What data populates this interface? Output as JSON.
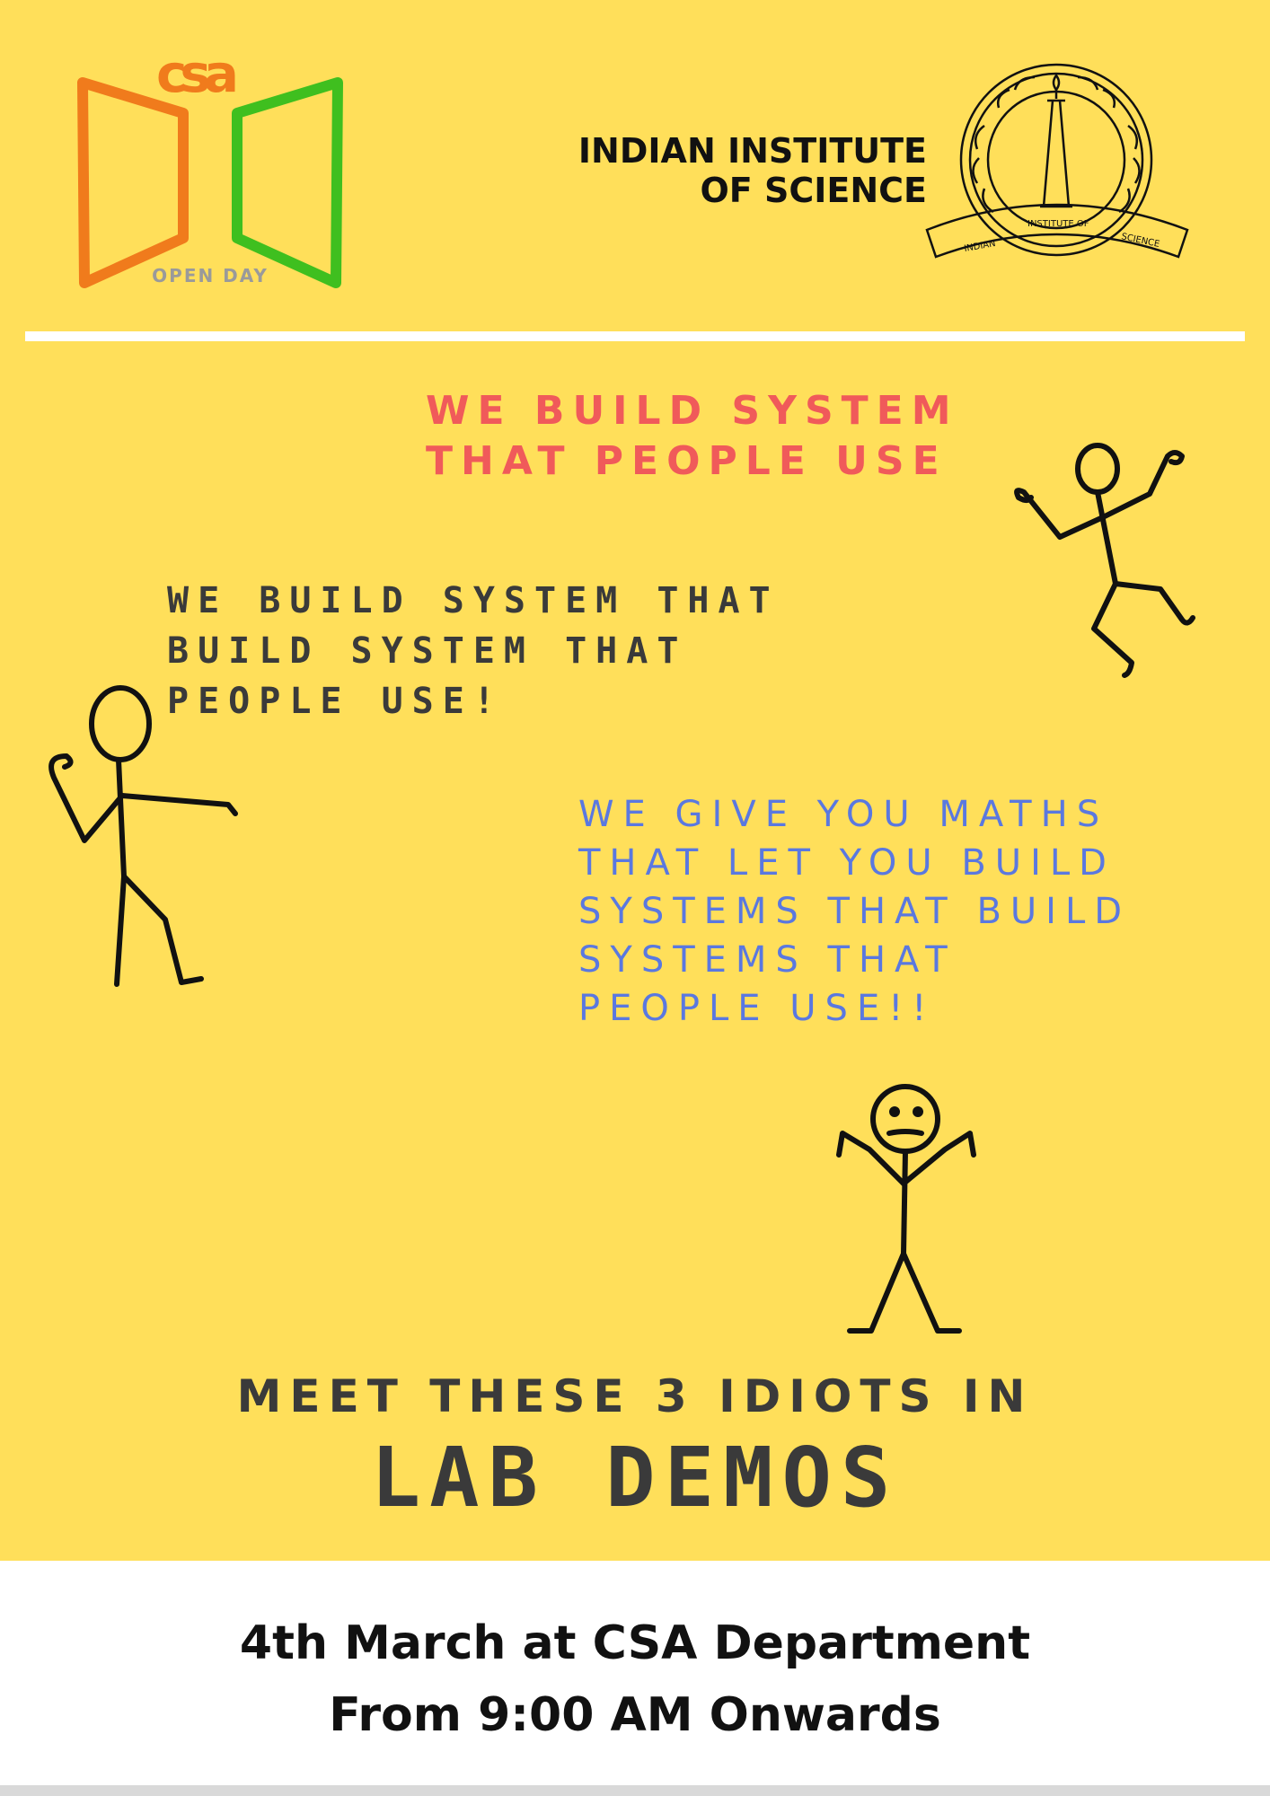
{
  "header": {
    "logo": {
      "mark_text": "csa",
      "label": "OPEN DAY",
      "colors": {
        "orange": "#f07b1c",
        "green": "#3fbf1f",
        "grey": "#9a9a9a"
      }
    },
    "institute": {
      "line1": "INDIAN INSTITUTE",
      "line2": "OF SCIENCE",
      "seal_text_left": "INDIAN",
      "seal_text_mid": "INSTITUTE OF",
      "seal_text_right": "SCIENCE"
    }
  },
  "body": {
    "pink_lines": [
      "WE BUILD SYSTEM",
      "THAT PEOPLE USE"
    ],
    "dark_lines": [
      "WE BUILD SYSTEM THAT",
      "BUILD SYSTEM THAT",
      "PEOPLE USE!"
    ],
    "blue_lines": [
      "WE GIVE YOU MATHS",
      "THAT LET YOU BUILD",
      "SYSTEMS THAT BUILD",
      "SYSTEMS THAT",
      "PEOPLE USE!!"
    ],
    "meet_line": "MEET THESE 3 IDIOTS IN",
    "headline": "LAB DEMOS"
  },
  "footer": {
    "line1": "4th March at CSA Department",
    "line2": "From 9:00 AM Onwards"
  },
  "colors": {
    "background": "#ffdf5a",
    "pink": "#f05a5a",
    "blue": "#5a78e0",
    "dark": "#3a3a3a"
  }
}
